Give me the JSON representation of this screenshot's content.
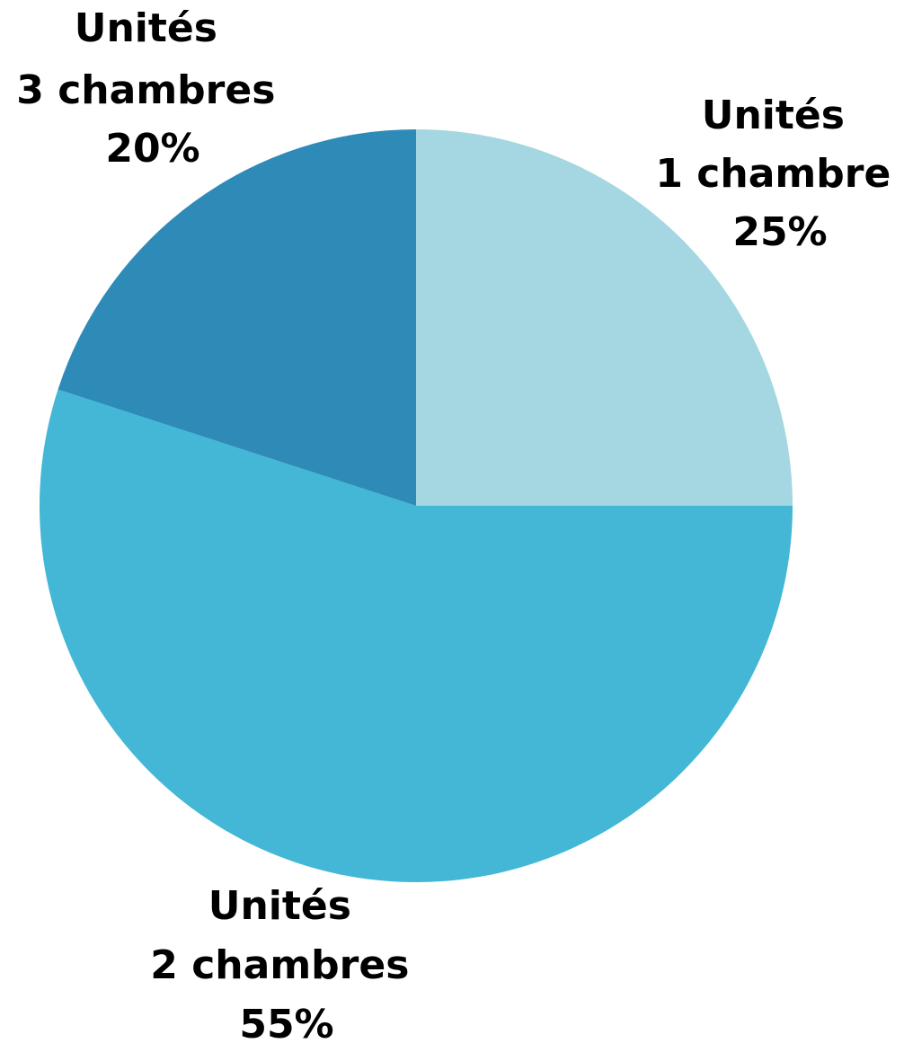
{
  "chart_data": {
    "type": "pie",
    "start_angle_deg": 0,
    "direction": "clockwise",
    "slices": [
      {
        "category": "Unités",
        "label": "1 chambre",
        "value": 25,
        "value_text": "25%",
        "color": "#a4d7e1"
      },
      {
        "category": "Unités",
        "label": "2 chambres",
        "value": 55,
        "value_text": "55%",
        "color": "#43b7d5"
      },
      {
        "category": "Unités",
        "label": "3 chambres",
        "value": 20,
        "value_text": "20%",
        "color": "#2e8bb8"
      }
    ]
  }
}
